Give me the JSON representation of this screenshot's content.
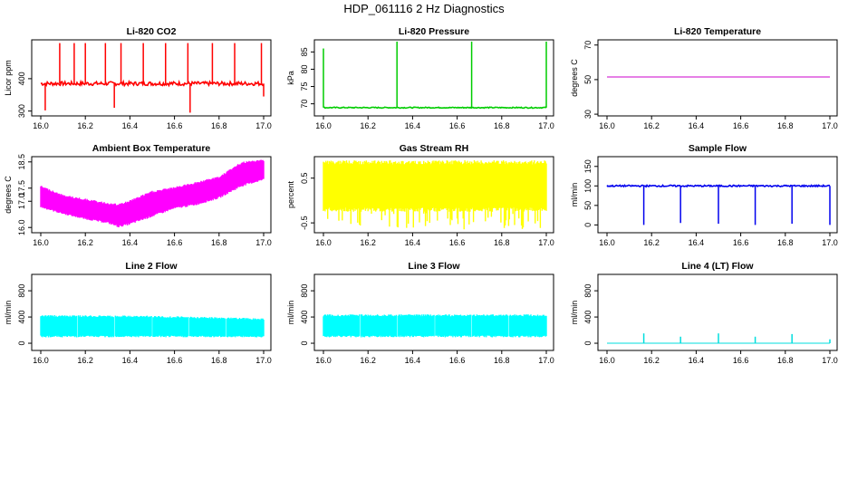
{
  "title": "HDP_061116  2 Hz Diagnostics",
  "x_ticks": [
    16.0,
    16.2,
    16.4,
    16.6,
    16.8,
    17.0
  ],
  "x_tick_labels": [
    "16.0",
    "16.2",
    "16.4",
    "16.6",
    "16.8",
    "17.0"
  ],
  "chart_data": [
    {
      "type": "line",
      "title": "Li-820 CO2",
      "ylabel": "Licor ppm",
      "color": "#ff0000",
      "xlim": [
        16.0,
        17.0
      ],
      "ylim": [
        285,
        520
      ],
      "yticks": [
        300,
        400
      ],
      "ytick_labels": [
        "300",
        "400"
      ],
      "baseline": 385,
      "noise": 6,
      "band": false,
      "spikes": [
        {
          "x": 16.02,
          "y": 302
        },
        {
          "x": 16.085,
          "y": 510
        },
        {
          "x": 16.15,
          "y": 510
        },
        {
          "x": 16.2,
          "y": 510
        },
        {
          "x": 16.29,
          "y": 510
        },
        {
          "x": 16.33,
          "y": 310
        },
        {
          "x": 16.36,
          "y": 510
        },
        {
          "x": 16.46,
          "y": 510
        },
        {
          "x": 16.56,
          "y": 510
        },
        {
          "x": 16.66,
          "y": 510
        },
        {
          "x": 16.67,
          "y": 295
        },
        {
          "x": 16.77,
          "y": 510
        },
        {
          "x": 16.87,
          "y": 510
        },
        {
          "x": 16.99,
          "y": 510
        },
        {
          "x": 17.0,
          "y": 345
        }
      ]
    },
    {
      "type": "line",
      "title": "Li-820 Pressure",
      "ylabel": "kPa",
      "color": "#00cc00",
      "xlim": [
        16.0,
        17.0
      ],
      "ylim": [
        66.5,
        88.5
      ],
      "yticks": [
        70,
        75,
        80,
        85
      ],
      "ytick_labels": [
        "70",
        "75",
        "80",
        "85"
      ],
      "baseline": 68.9,
      "noise": 0.15,
      "band": false,
      "spikes": [
        {
          "x": 16.0,
          "y": 86.0
        },
        {
          "x": 16.33,
          "y": 88.0
        },
        {
          "x": 16.665,
          "y": 88.0
        },
        {
          "x": 17.0,
          "y": 88.0
        }
      ]
    },
    {
      "type": "line",
      "title": "Li-820 Temperature",
      "ylabel": "degrees C",
      "color": "#cc00cc",
      "xlim": [
        16.0,
        17.0
      ],
      "ylim": [
        29,
        73
      ],
      "yticks": [
        30,
        50,
        70
      ],
      "ytick_labels": [
        "30",
        "50",
        "70"
      ],
      "baseline": 51.5,
      "noise": 0,
      "band": false,
      "spikes": []
    },
    {
      "type": "area",
      "title": "Ambient Box Temperature",
      "ylabel": "degrees C",
      "color": "#ff00ff",
      "xlim": [
        16.0,
        17.0
      ],
      "ylim": [
        15.8,
        18.7
      ],
      "yticks": [
        16.0,
        17.0,
        17.5,
        18.5
      ],
      "ytick_labels": [
        "16.0",
        "17.0",
        "17.5",
        "18.5"
      ],
      "band": true,
      "upper": [
        {
          "x": 16.0,
          "y": 17.6
        },
        {
          "x": 16.1,
          "y": 17.25
        },
        {
          "x": 16.2,
          "y": 17.1
        },
        {
          "x": 16.3,
          "y": 16.95
        },
        {
          "x": 16.35,
          "y": 16.9
        },
        {
          "x": 16.4,
          "y": 17.05
        },
        {
          "x": 16.5,
          "y": 17.4
        },
        {
          "x": 16.6,
          "y": 17.55
        },
        {
          "x": 16.7,
          "y": 17.75
        },
        {
          "x": 16.8,
          "y": 17.95
        },
        {
          "x": 16.9,
          "y": 18.5
        },
        {
          "x": 17.0,
          "y": 18.6
        }
      ],
      "lower": [
        {
          "x": 16.0,
          "y": 16.75
        },
        {
          "x": 16.1,
          "y": 16.5
        },
        {
          "x": 16.2,
          "y": 16.3
        },
        {
          "x": 16.3,
          "y": 16.15
        },
        {
          "x": 16.35,
          "y": 16.0
        },
        {
          "x": 16.4,
          "y": 16.1
        },
        {
          "x": 16.5,
          "y": 16.4
        },
        {
          "x": 16.6,
          "y": 16.7
        },
        {
          "x": 16.7,
          "y": 16.85
        },
        {
          "x": 16.8,
          "y": 17.1
        },
        {
          "x": 16.9,
          "y": 17.55
        },
        {
          "x": 17.0,
          "y": 17.8
        }
      ]
    },
    {
      "type": "area",
      "title": "Gas Stream RH",
      "ylabel": "percent",
      "color": "#ffff00",
      "xlim": [
        16.0,
        17.0
      ],
      "ylim": [
        -0.72,
        0.98
      ],
      "yticks": [
        -0.5,
        0.5
      ],
      "ytick_labels": [
        "-0.5",
        "0.5"
      ],
      "band": true,
      "upper": [
        {
          "x": 16.0,
          "y": 0.9
        },
        {
          "x": 17.0,
          "y": 0.9
        }
      ],
      "lower": [
        {
          "x": 16.0,
          "y": -0.25
        },
        {
          "x": 17.0,
          "y": -0.25
        }
      ],
      "dips_to": -0.65
    },
    {
      "type": "line",
      "title": "Sample Flow",
      "ylabel": "ml/min",
      "color": "#0000ee",
      "xlim": [
        16.0,
        17.0
      ],
      "ylim": [
        -20,
        175
      ],
      "yticks": [
        0,
        50,
        100,
        150
      ],
      "ytick_labels": [
        "0",
        "50",
        "100",
        "150"
      ],
      "baseline": 100,
      "noise": 2,
      "band": false,
      "spikes": [
        {
          "x": 16.165,
          "y": 0
        },
        {
          "x": 16.33,
          "y": 5
        },
        {
          "x": 16.5,
          "y": 3
        },
        {
          "x": 16.665,
          "y": 0
        },
        {
          "x": 16.83,
          "y": 3
        },
        {
          "x": 17.0,
          "y": 0
        }
      ]
    },
    {
      "type": "area",
      "title": "Line 2 Flow",
      "ylabel": "ml/min",
      "color": "#00ffff",
      "xlim": [
        16.0,
        17.0
      ],
      "ylim": [
        -110,
        1050
      ],
      "yticks": [
        0,
        400,
        800
      ],
      "ytick_labels": [
        "0",
        "400",
        "800"
      ],
      "band": true,
      "upper": [
        {
          "x": 16.0,
          "y": 430
        },
        {
          "x": 16.5,
          "y": 420
        },
        {
          "x": 17.0,
          "y": 380
        }
      ],
      "lower": [
        {
          "x": 16.0,
          "y": 90
        },
        {
          "x": 17.0,
          "y": 90
        }
      ],
      "gaps": [
        16.165,
        16.33,
        16.5,
        16.665,
        16.83
      ]
    },
    {
      "type": "area",
      "title": "Line 3 Flow",
      "ylabel": "ml/min",
      "color": "#00ffff",
      "xlim": [
        16.0,
        17.0
      ],
      "ylim": [
        -110,
        1050
      ],
      "yticks": [
        0,
        400,
        800
      ],
      "ytick_labels": [
        "0",
        "400",
        "800"
      ],
      "band": true,
      "upper": [
        {
          "x": 16.0,
          "y": 440
        },
        {
          "x": 17.0,
          "y": 440
        }
      ],
      "lower": [
        {
          "x": 16.0,
          "y": 90
        },
        {
          "x": 17.0,
          "y": 90
        }
      ],
      "gaps": [
        16.165,
        16.33,
        16.5,
        16.665,
        16.83
      ]
    },
    {
      "type": "line",
      "title": "Line 4 (LT) Flow",
      "ylabel": "ml/min",
      "color": "#00dddd",
      "xlim": [
        16.0,
        17.0
      ],
      "ylim": [
        -110,
        1050
      ],
      "yticks": [
        0,
        400,
        800
      ],
      "ytick_labels": [
        "0",
        "400",
        "800"
      ],
      "baseline": 0,
      "noise": 0,
      "band": false,
      "spikes": [
        {
          "x": 16.165,
          "y": 150
        },
        {
          "x": 16.33,
          "y": 100
        },
        {
          "x": 16.5,
          "y": 150
        },
        {
          "x": 16.665,
          "y": 100
        },
        {
          "x": 16.83,
          "y": 140
        },
        {
          "x": 17.0,
          "y": 60
        }
      ]
    }
  ]
}
